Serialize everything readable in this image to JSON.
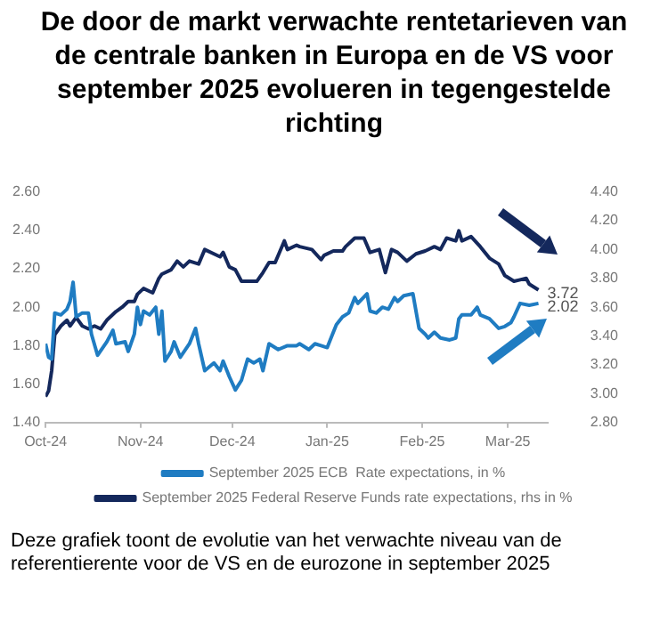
{
  "chart_data": {
    "type": "line",
    "title": "De door de markt verwachte rentetarieven van de centrale banken in Europa en de VS voor september 2025 evolueren in tegengestelde richting",
    "annotations": [
      "Deze grafiek toont de evolutie van het verwachte niveau van de referentierente voor de VS en de eurozone in september 2025"
    ],
    "xlim": [
      "2024-10-01",
      "2025-03-14"
    ],
    "xticks": [
      {
        "value": "2024-10-01",
        "label": "Oct-24"
      },
      {
        "value": "2024-11-01",
        "label": "Nov-24"
      },
      {
        "value": "2024-12-01",
        "label": "Dec-24"
      },
      {
        "value": "2025-01-01",
        "label": "Jan-25"
      },
      {
        "value": "2025-02-01",
        "label": "Feb-25"
      },
      {
        "value": "2025-03-01",
        "label": "Mar-25"
      }
    ],
    "ylim": [
      1.4,
      2.6
    ],
    "yticks": [
      {
        "value": 1.4,
        "label": "1.40"
      },
      {
        "value": 1.6,
        "label": "1.60"
      },
      {
        "value": 1.8,
        "label": "1.80"
      },
      {
        "value": 2.0,
        "label": "2.00"
      },
      {
        "value": 2.2,
        "label": "2.20"
      },
      {
        "value": 2.4,
        "label": "2.40"
      },
      {
        "value": 2.6,
        "label": "2.60"
      }
    ],
    "y2lim": [
      2.8,
      4.4
    ],
    "y2ticks": [
      {
        "value": 2.8,
        "label": "2.80"
      },
      {
        "value": 3.0,
        "label": "3.00"
      },
      {
        "value": 3.2,
        "label": "3.20"
      },
      {
        "value": 3.4,
        "label": "3.40"
      },
      {
        "value": 3.6,
        "label": "3.60"
      },
      {
        "value": 3.8,
        "label": "3.80"
      },
      {
        "value": 4.0,
        "label": "4.00"
      },
      {
        "value": 4.2,
        "label": "4.20"
      },
      {
        "value": 4.4,
        "label": "4.40"
      }
    ],
    "grid": false,
    "legend": "bottom",
    "marker": "none",
    "line_style": "solid",
    "series": [
      {
        "name": "September 2025 ECB  Rate expectations, in %",
        "color": "#1f7cc2",
        "x": [
          "2024-10-01",
          "2024-10-02",
          "2024-10-03",
          "2024-10-04",
          "2024-10-06",
          "2024-10-08",
          "2024-10-09",
          "2024-10-10",
          "2024-10-11",
          "2024-10-13",
          "2024-10-15",
          "2024-10-16",
          "2024-10-18",
          "2024-10-21",
          "2024-10-23",
          "2024-10-24",
          "2024-10-27",
          "2024-10-28",
          "2024-10-30",
          "2024-10-31",
          "2024-11-01",
          "2024-11-02",
          "2024-11-04",
          "2024-11-06",
          "2024-11-07",
          "2024-11-08",
          "2024-11-09",
          "2024-11-11",
          "2024-11-12",
          "2024-11-14",
          "2024-11-17",
          "2024-11-19",
          "2024-11-20",
          "2024-11-22",
          "2024-11-25",
          "2024-11-27",
          "2024-11-28",
          "2024-11-30",
          "2024-12-02",
          "2024-12-04",
          "2024-12-06",
          "2024-12-08",
          "2024-12-10",
          "2024-12-11",
          "2024-12-13",
          "2024-12-16",
          "2024-12-19",
          "2024-12-22",
          "2024-12-23",
          "2024-12-26",
          "2024-12-28",
          "2024-12-30",
          "2025-01-01",
          "2025-01-03",
          "2025-01-04",
          "2025-01-06",
          "2025-01-08",
          "2025-01-10",
          "2025-01-11",
          "2025-01-14",
          "2025-01-15",
          "2025-01-17",
          "2025-01-19",
          "2025-01-21",
          "2025-01-23",
          "2025-01-24",
          "2025-01-26",
          "2025-01-29",
          "2025-01-31",
          "2025-02-02",
          "2025-02-03",
          "2025-02-05",
          "2025-02-07",
          "2025-02-10",
          "2025-02-12",
          "2025-02-13",
          "2025-02-14",
          "2025-02-17",
          "2025-02-19",
          "2025-02-20",
          "2025-02-23",
          "2025-02-26",
          "2025-02-28",
          "2025-03-02",
          "2025-03-03",
          "2025-03-05",
          "2025-03-08",
          "2025-03-11"
        ],
        "values": [
          1.81,
          1.74,
          1.73,
          1.97,
          1.96,
          1.99,
          2.03,
          2.13,
          1.95,
          1.97,
          1.97,
          1.86,
          1.75,
          1.82,
          1.88,
          1.81,
          1.82,
          1.77,
          1.86,
          2.0,
          1.91,
          1.98,
          1.96,
          2.0,
          1.86,
          1.98,
          1.72,
          1.77,
          1.82,
          1.74,
          1.81,
          1.89,
          1.81,
          1.67,
          1.71,
          1.67,
          1.72,
          1.64,
          1.57,
          1.62,
          1.73,
          1.71,
          1.73,
          1.67,
          1.81,
          1.78,
          1.8,
          1.8,
          1.81,
          1.78,
          1.81,
          1.8,
          1.79,
          1.87,
          1.91,
          1.95,
          1.97,
          2.05,
          2.02,
          2.07,
          1.98,
          1.97,
          2.0,
          1.99,
          2.05,
          2.03,
          2.06,
          2.07,
          1.89,
          1.86,
          1.84,
          1.87,
          1.84,
          1.83,
          1.84,
          1.94,
          1.96,
          1.96,
          2.0,
          1.96,
          1.94,
          1.89,
          1.9,
          1.92,
          1.95,
          2.02,
          2.01,
          2.02
        ],
        "value_labels": [
          null,
          null,
          null,
          null,
          null,
          null,
          null,
          null,
          null,
          null,
          null,
          null,
          null,
          null,
          null,
          null,
          null,
          null,
          null,
          null,
          null,
          null,
          null,
          null,
          null,
          null,
          null,
          null,
          null,
          null,
          null,
          null,
          null,
          null,
          null,
          null,
          null,
          null,
          null,
          null,
          null,
          null,
          null,
          null,
          null,
          null,
          null,
          null,
          null,
          null,
          null,
          null,
          null,
          null,
          null,
          null,
          null,
          null,
          null,
          null,
          null,
          null,
          null,
          null,
          null,
          null,
          null,
          null,
          null,
          null,
          null,
          null,
          null,
          null,
          null,
          null,
          null,
          null,
          null,
          null,
          null,
          null,
          null,
          null,
          null,
          null,
          null,
          "2.02"
        ]
      },
      {
        "name": "September 2025 Federal Reserve Funds rate expectations, rhs in %",
        "color": "#14285c",
        "axis": "y2",
        "x": [
          "2024-10-01",
          "2024-10-02",
          "2024-10-03",
          "2024-10-04",
          "2024-10-06",
          "2024-10-08",
          "2024-10-09",
          "2024-10-11",
          "2024-10-13",
          "2024-10-15",
          "2024-10-17",
          "2024-10-19",
          "2024-10-21",
          "2024-10-24",
          "2024-10-26",
          "2024-10-28",
          "2024-10-30",
          "2024-10-31",
          "2024-11-02",
          "2024-11-05",
          "2024-11-07",
          "2024-11-08",
          "2024-11-11",
          "2024-11-13",
          "2024-11-15",
          "2024-11-17",
          "2024-11-20",
          "2024-11-22",
          "2024-11-25",
          "2024-11-27",
          "2024-11-28",
          "2024-11-30",
          "2024-12-02",
          "2024-12-04",
          "2024-12-06",
          "2024-12-09",
          "2024-12-11",
          "2024-12-13",
          "2024-12-15",
          "2024-12-18",
          "2024-12-19",
          "2024-12-22",
          "2024-12-23",
          "2024-12-27",
          "2024-12-30",
          "2024-12-31",
          "2025-01-03",
          "2025-01-06",
          "2025-01-07",
          "2025-01-10",
          "2025-01-13",
          "2025-01-15",
          "2025-01-18",
          "2025-01-20",
          "2025-01-22",
          "2025-01-24",
          "2025-01-27",
          "2025-01-30",
          "2025-02-02",
          "2025-02-05",
          "2025-02-07",
          "2025-02-09",
          "2025-02-12",
          "2025-02-13",
          "2025-02-14",
          "2025-02-17",
          "2025-02-20",
          "2025-02-23",
          "2025-02-26",
          "2025-02-28",
          "2025-03-03",
          "2025-03-05",
          "2025-03-07",
          "2025-03-08",
          "2025-03-11"
        ],
        "values": [
          2.98,
          3.02,
          3.16,
          3.41,
          3.47,
          3.51,
          3.47,
          3.53,
          3.47,
          3.45,
          3.47,
          3.45,
          3.51,
          3.57,
          3.6,
          3.64,
          3.64,
          3.69,
          3.73,
          3.7,
          3.8,
          3.83,
          3.86,
          3.92,
          3.88,
          3.92,
          3.9,
          4.0,
          3.97,
          3.95,
          3.98,
          3.88,
          3.86,
          3.78,
          3.78,
          3.78,
          3.84,
          3.91,
          3.91,
          4.06,
          4.0,
          4.03,
          4.02,
          4.0,
          3.93,
          3.96,
          3.99,
          3.99,
          4.02,
          4.08,
          4.08,
          3.98,
          4.0,
          3.84,
          4.0,
          3.98,
          3.92,
          3.97,
          3.99,
          4.02,
          4.0,
          4.08,
          4.06,
          4.13,
          4.06,
          4.09,
          4.02,
          3.94,
          3.9,
          3.82,
          3.78,
          3.79,
          3.8,
          3.76,
          3.72
        ],
        "value_labels": [
          null,
          null,
          null,
          null,
          null,
          null,
          null,
          null,
          null,
          null,
          null,
          null,
          null,
          null,
          null,
          null,
          null,
          null,
          null,
          null,
          null,
          null,
          null,
          null,
          null,
          null,
          null,
          null,
          null,
          null,
          null,
          null,
          null,
          null,
          null,
          null,
          null,
          null,
          null,
          null,
          null,
          null,
          null,
          null,
          null,
          null,
          null,
          null,
          null,
          null,
          null,
          null,
          null,
          null,
          null,
          null,
          null,
          null,
          null,
          null,
          null,
          null,
          null,
          null,
          null,
          null,
          null,
          null,
          null,
          null,
          null,
          null,
          null,
          null,
          "3.72"
        ]
      }
    ]
  }
}
